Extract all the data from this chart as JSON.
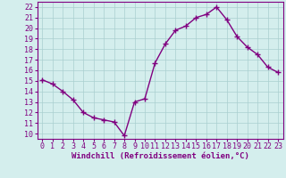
{
  "x": [
    0,
    1,
    2,
    3,
    4,
    5,
    6,
    7,
    8,
    9,
    10,
    11,
    12,
    13,
    14,
    15,
    16,
    17,
    18,
    19,
    20,
    21,
    22,
    23
  ],
  "y": [
    15.1,
    14.7,
    14.0,
    13.2,
    12.0,
    11.5,
    11.3,
    11.1,
    9.8,
    13.0,
    13.3,
    16.7,
    18.5,
    19.8,
    20.2,
    21.0,
    21.3,
    22.0,
    20.8,
    19.2,
    18.2,
    17.5,
    16.3,
    15.8
  ],
  "line_color": "#800080",
  "marker": "+",
  "marker_size": 4,
  "marker_lw": 1.0,
  "line_width": 1.0,
  "bg_color": "#d4eeed",
  "grid_color": "#aacfcf",
  "xlabel": "Windchill (Refroidissement éolien,°C)",
  "xlabel_color": "#800080",
  "xlabel_fontsize": 6.5,
  "tick_color": "#800080",
  "tick_fontsize": 6,
  "ylim": [
    9.5,
    22.5
  ],
  "xlim": [
    -0.5,
    23.5
  ],
  "yticks": [
    10,
    11,
    12,
    13,
    14,
    15,
    16,
    17,
    18,
    19,
    20,
    21,
    22
  ],
  "xticks": [
    0,
    1,
    2,
    3,
    4,
    5,
    6,
    7,
    8,
    9,
    10,
    11,
    12,
    13,
    14,
    15,
    16,
    17,
    18,
    19,
    20,
    21,
    22,
    23
  ],
  "spine_color": "#800080"
}
